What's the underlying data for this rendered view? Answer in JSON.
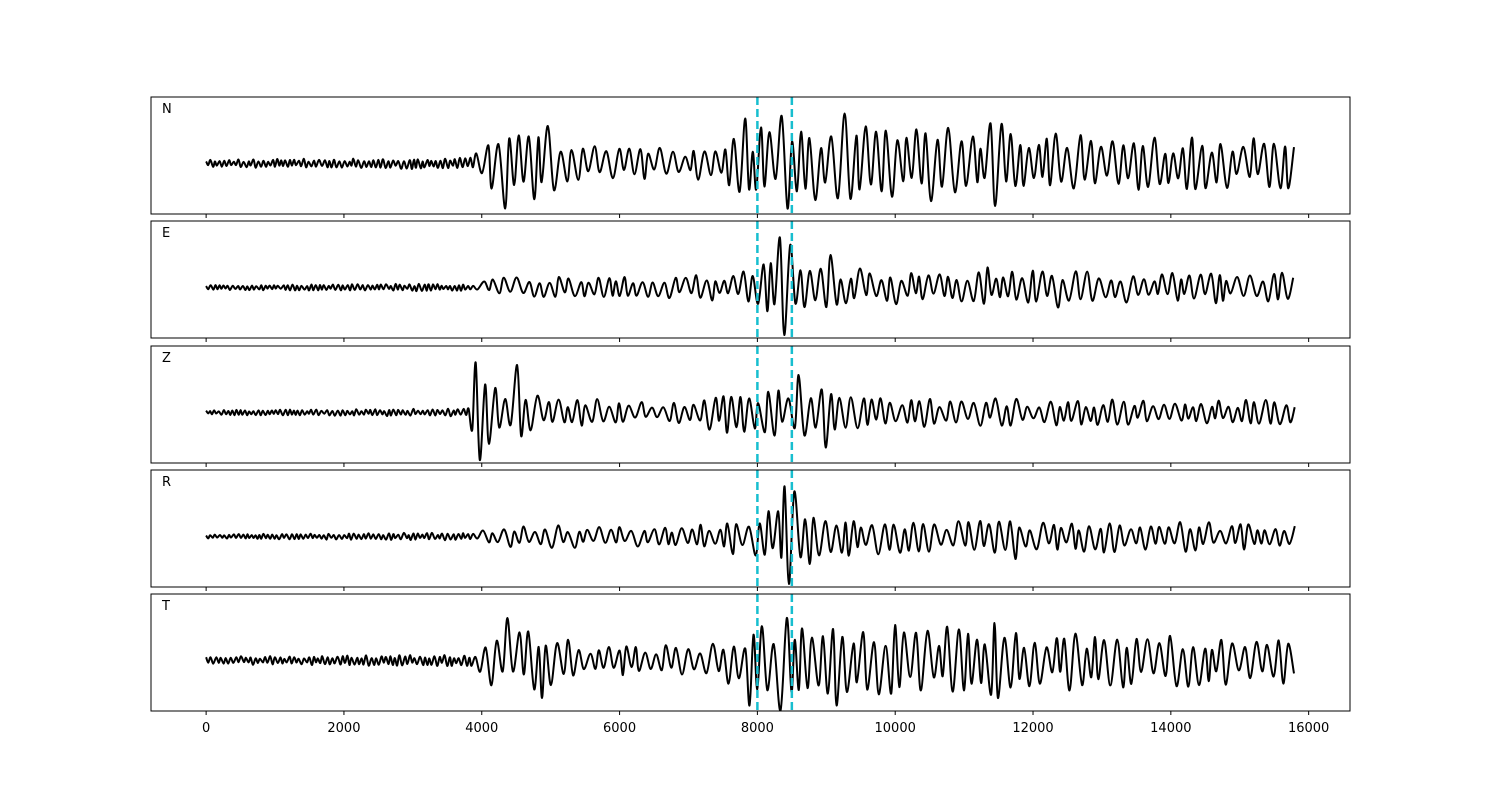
{
  "chart_data": {
    "type": "line",
    "layout": "stacked-subplots",
    "shared_x": true,
    "xlim": [
      -800,
      16600
    ],
    "xticks": [
      0,
      2000,
      4000,
      6000,
      8000,
      10000,
      12000,
      14000,
      16000
    ],
    "xticklabels": [
      "0",
      "2000",
      "4000",
      "6000",
      "8000",
      "10000",
      "12000",
      "14000",
      "16000"
    ],
    "x_range": [
      0,
      15800
    ],
    "line_color": "#000000",
    "markers": {
      "style": "dashed",
      "color": "#17becf",
      "x": [
        8000,
        8500
      ]
    },
    "panels": [
      {
        "label": "N",
        "noise_amp": 0.08,
        "onset": 3850,
        "seed": 11,
        "envelope": [
          [
            0,
            0.08
          ],
          [
            3850,
            0.12
          ],
          [
            4200,
            0.6
          ],
          [
            4900,
            0.75
          ],
          [
            5600,
            0.35
          ],
          [
            7000,
            0.3
          ],
          [
            7800,
            0.6
          ],
          [
            8300,
            0.85
          ],
          [
            9200,
            0.75
          ],
          [
            11500,
            0.8
          ],
          [
            13000,
            0.55
          ],
          [
            15800,
            0.5
          ]
        ],
        "peaks": [
          {
            "x": 4350,
            "y": -0.9
          },
          {
            "x": 4900,
            "y": 0.75
          },
          {
            "x": 7850,
            "y": 0.9
          },
          {
            "x": 8400,
            "y": 0.95
          },
          {
            "x": 8450,
            "y": -0.9
          },
          {
            "x": 9200,
            "y": 1.0
          },
          {
            "x": 11450,
            "y": -0.85
          },
          {
            "x": 11450,
            "y": 0.8
          }
        ]
      },
      {
        "label": "E",
        "noise_amp": 0.05,
        "onset": 3850,
        "seed": 23,
        "envelope": [
          [
            0,
            0.05
          ],
          [
            3850,
            0.08
          ],
          [
            4500,
            0.25
          ],
          [
            6500,
            0.2
          ],
          [
            7600,
            0.3
          ],
          [
            8200,
            0.55
          ],
          [
            9000,
            0.45
          ],
          [
            10500,
            0.3
          ],
          [
            12000,
            0.35
          ],
          [
            15800,
            0.3
          ]
        ],
        "peaks": [
          {
            "x": 8350,
            "y": 1.0
          },
          {
            "x": 8400,
            "y": -0.95
          },
          {
            "x": 8550,
            "y": 0.85
          },
          {
            "x": 9000,
            "y": 0.65
          },
          {
            "x": 11400,
            "y": 0.4
          },
          {
            "x": 12400,
            "y": -0.4
          }
        ]
      },
      {
        "label": "Z",
        "noise_amp": 0.05,
        "onset": 3800,
        "seed": 37,
        "envelope": [
          [
            0,
            0.05
          ],
          [
            3800,
            0.08
          ],
          [
            3950,
            0.8
          ],
          [
            4600,
            0.55
          ],
          [
            5200,
            0.3
          ],
          [
            6800,
            0.2
          ],
          [
            7500,
            0.4
          ],
          [
            8600,
            0.55
          ],
          [
            9600,
            0.3
          ],
          [
            15800,
            0.25
          ]
        ],
        "peaks": [
          {
            "x": 3920,
            "y": -0.95
          },
          {
            "x": 3950,
            "y": 1.0
          },
          {
            "x": 4550,
            "y": 0.95
          },
          {
            "x": 8600,
            "y": 0.75
          },
          {
            "x": 9000,
            "y": -0.7
          }
        ]
      },
      {
        "label": "R",
        "noise_amp": 0.05,
        "onset": 3850,
        "seed": 53,
        "envelope": [
          [
            0,
            0.05
          ],
          [
            3850,
            0.08
          ],
          [
            4500,
            0.25
          ],
          [
            7000,
            0.2
          ],
          [
            7600,
            0.35
          ],
          [
            8300,
            0.6
          ],
          [
            9000,
            0.4
          ],
          [
            10000,
            0.35
          ],
          [
            15800,
            0.3
          ]
        ],
        "peaks": [
          {
            "x": 8400,
            "y": 1.0
          },
          {
            "x": 8450,
            "y": -0.95
          },
          {
            "x": 8550,
            "y": 0.9
          },
          {
            "x": 8700,
            "y": -0.55
          },
          {
            "x": 11800,
            "y": -0.45
          }
        ]
      },
      {
        "label": "T",
        "noise_amp": 0.08,
        "onset": 3850,
        "seed": 71,
        "envelope": [
          [
            0,
            0.08
          ],
          [
            3850,
            0.12
          ],
          [
            4200,
            0.6
          ],
          [
            4900,
            0.6
          ],
          [
            5600,
            0.35
          ],
          [
            7000,
            0.3
          ],
          [
            7800,
            0.6
          ],
          [
            8300,
            0.85
          ],
          [
            9200,
            0.7
          ],
          [
            11500,
            0.75
          ],
          [
            13000,
            0.55
          ],
          [
            15800,
            0.5
          ]
        ],
        "peaks": [
          {
            "x": 4350,
            "y": 0.85
          },
          {
            "x": 4900,
            "y": -0.75
          },
          {
            "x": 7850,
            "y": -0.9
          },
          {
            "x": 8400,
            "y": -1.0
          },
          {
            "x": 8450,
            "y": 0.85
          },
          {
            "x": 9200,
            "y": -0.9
          },
          {
            "x": 11450,
            "y": 0.75
          },
          {
            "x": 11450,
            "y": -0.75
          }
        ]
      }
    ]
  }
}
